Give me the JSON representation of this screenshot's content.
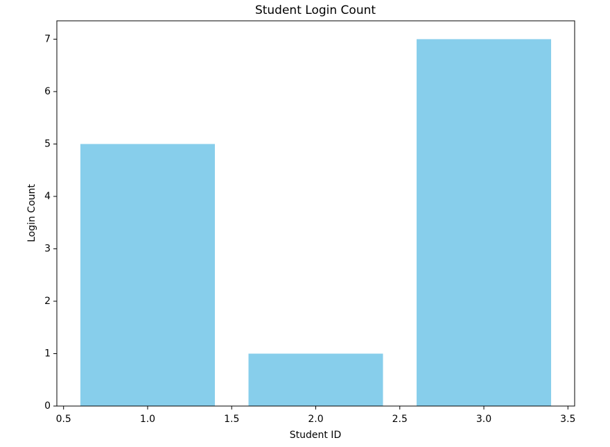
{
  "chart_data": {
    "type": "bar",
    "title": "Student Login Count",
    "x_label": "Student ID",
    "y_label": "Login Count",
    "x": [
      1,
      2,
      3
    ],
    "values": [
      5,
      1,
      7
    ],
    "color": "#87ceeb",
    "bar_width": 0.8,
    "xlim": [
      0.46,
      3.54
    ],
    "xticks": [
      0.5,
      {
        "value": 1,
        "label": "1.0"
      },
      1.5,
      {
        "value": 2,
        "label": "2.0"
      },
      2.5,
      {
        "value": 3,
        "label": "3.0"
      },
      3.5
    ],
    "ylim": [
      0,
      7.35
    ],
    "yticks": [
      0,
      1,
      2,
      3,
      4,
      5,
      6,
      7
    ],
    "grid": false
  }
}
